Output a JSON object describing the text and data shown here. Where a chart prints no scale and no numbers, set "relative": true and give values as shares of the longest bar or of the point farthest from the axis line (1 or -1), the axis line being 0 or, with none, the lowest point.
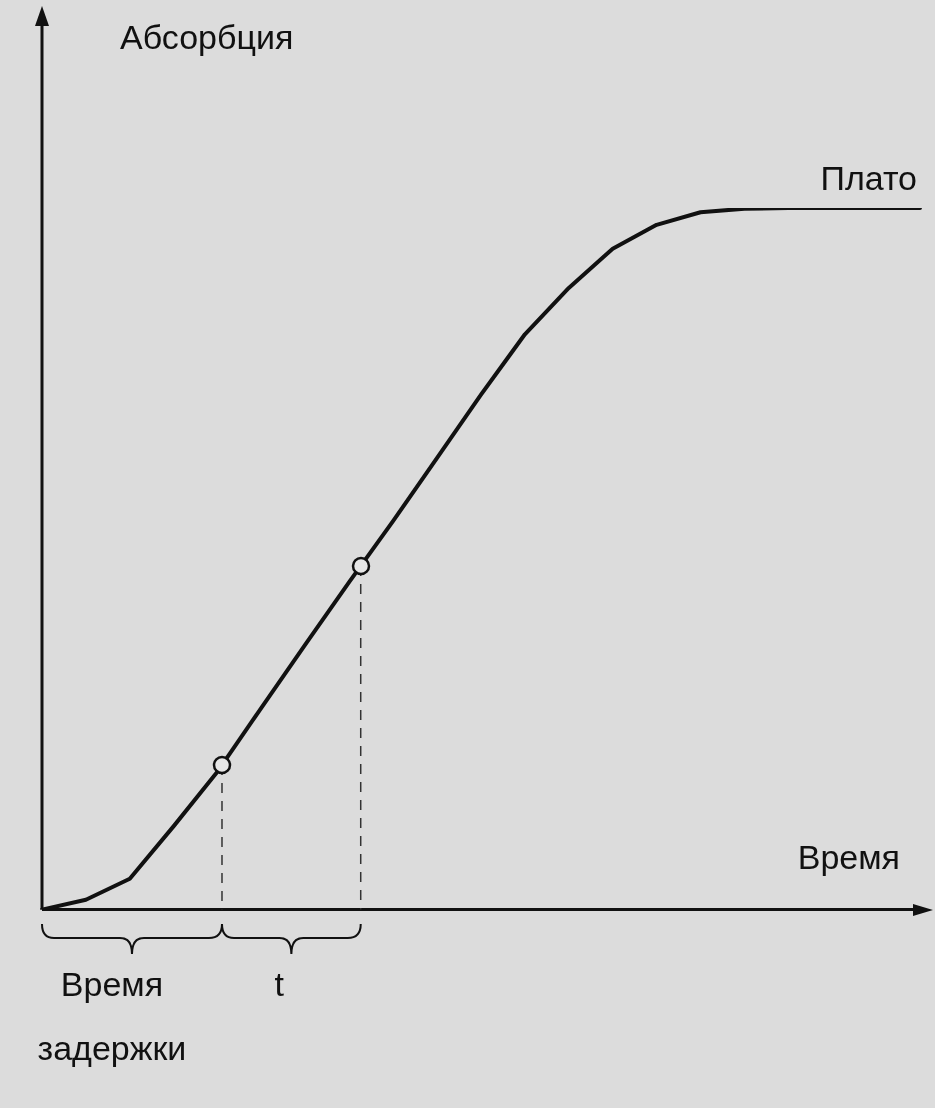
{
  "chart_data": {
    "type": "line",
    "relative": true,
    "xlabel": "Время",
    "ylabel": "Абсорбция",
    "categories": [
      null,
      null,
      null,
      null,
      null,
      null,
      null,
      null,
      null,
      null,
      null,
      null,
      null,
      null,
      null,
      null,
      null,
      null,
      null,
      null,
      null
    ],
    "series": [
      {
        "type": "line",
        "color": "#111111",
        "marker": "none",
        "values": [
          0,
          0.014,
          0.044,
          0.119,
          0.197,
          0.288,
          0.378,
          0.467,
          0.554,
          0.644,
          0.734,
          0.82,
          0.886,
          0.942,
          0.976,
          0.994,
          0.999,
          1,
          1,
          1,
          1
        ]
      }
    ],
    "annotations": [
      "Плато",
      "Время задержки",
      "t"
    ],
    "grid": false,
    "legend": false
  }
}
